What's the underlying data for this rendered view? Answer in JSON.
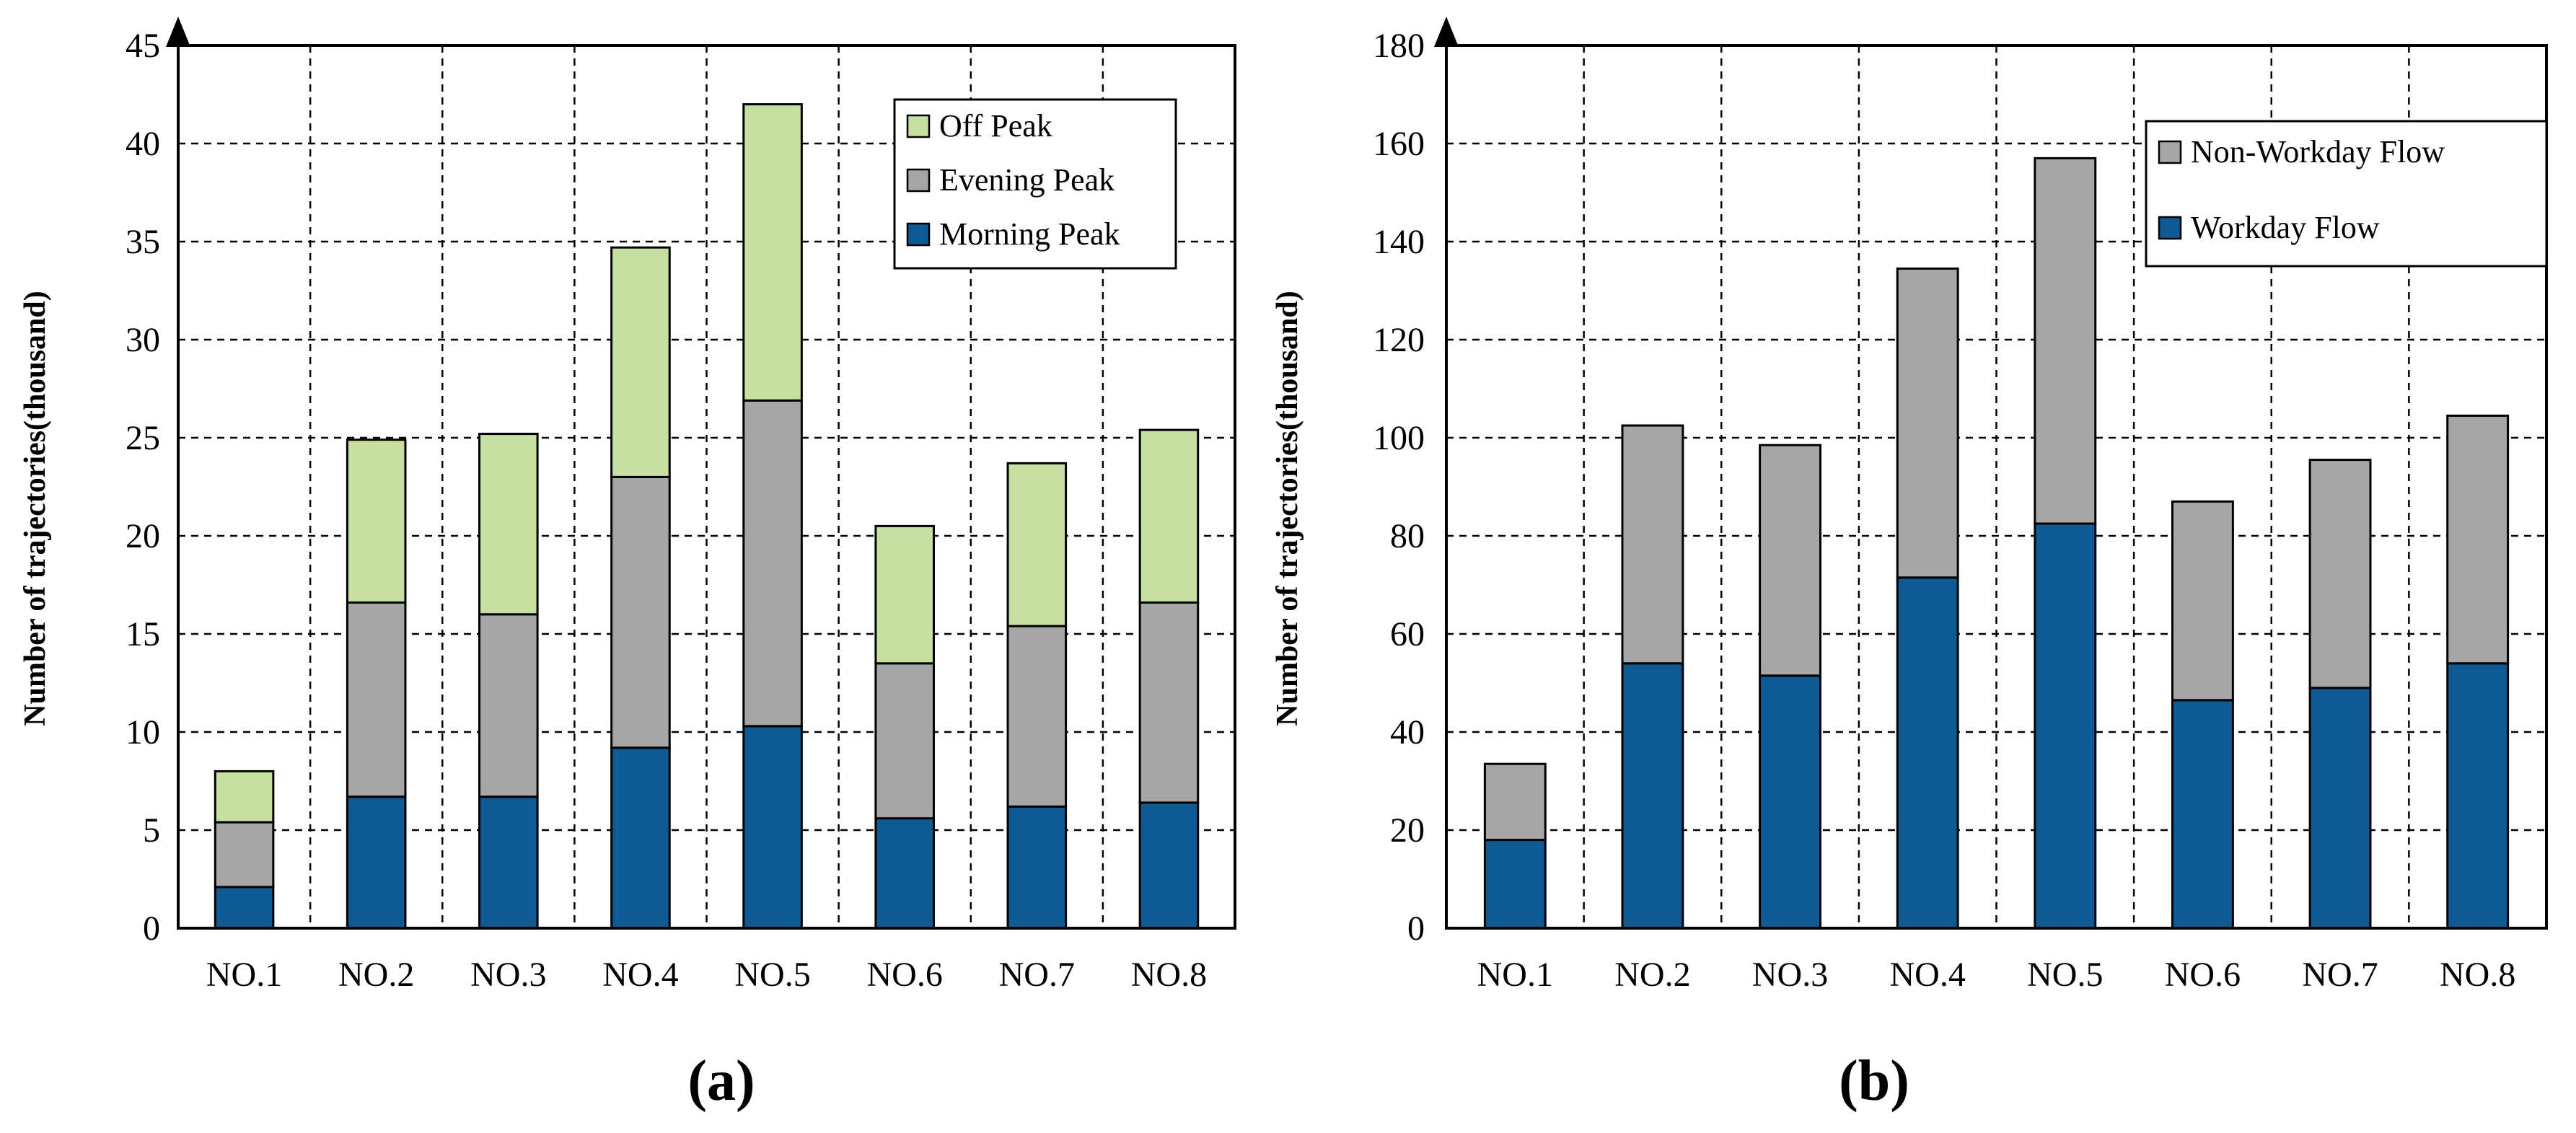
{
  "figure": {
    "panel_labels": [
      "(a)",
      "(b)"
    ]
  },
  "colors": {
    "morning_peak": "#0d5a94",
    "evening_peak": "#a6a6a6",
    "off_peak": "#c5e0a0",
    "workday_flow": "#0d5a94",
    "non_workday_flow": "#a6a6a6"
  },
  "chart_data": [
    {
      "type": "bar",
      "stacked": true,
      "title": "",
      "panel": "(a)",
      "xlabel": "",
      "ylabel": "Number of trajectories(thousand)",
      "ylim": [
        0,
        45
      ],
      "ytick_step": 5,
      "grid": true,
      "legend_position": "top-right",
      "categories": [
        "NO.1",
        "NO.2",
        "NO.3",
        "NO.4",
        "NO.5",
        "NO.6",
        "NO.7",
        "NO.8"
      ],
      "series": [
        {
          "name": "Morning Peak",
          "color": "#0d5a94",
          "values": [
            2.1,
            6.7,
            6.7,
            9.2,
            10.3,
            5.6,
            6.2,
            6.4
          ]
        },
        {
          "name": "Evening Peak",
          "color": "#a6a6a6",
          "values": [
            3.3,
            9.9,
            9.3,
            13.8,
            16.6,
            7.9,
            9.2,
            10.2
          ]
        },
        {
          "name": "Off Peak",
          "color": "#c5e0a0",
          "values": [
            2.6,
            8.3,
            9.2,
            11.7,
            15.1,
            7.0,
            8.3,
            8.8
          ]
        }
      ],
      "legend_order": [
        "Off Peak",
        "Evening Peak",
        "Morning Peak"
      ]
    },
    {
      "type": "bar",
      "stacked": true,
      "title": "",
      "panel": "(b)",
      "xlabel": "",
      "ylabel": "Number of trajectories(thousand)",
      "ylim": [
        0,
        180
      ],
      "ytick_step": 20,
      "grid": true,
      "legend_position": "top-right",
      "categories": [
        "NO.1",
        "NO.2",
        "NO.3",
        "NO.4",
        "NO.5",
        "NO.6",
        "NO.7",
        "NO.8"
      ],
      "series": [
        {
          "name": "Workday Flow",
          "color": "#0d5a94",
          "values": [
            18,
            54,
            51.5,
            71.5,
            82.5,
            46.5,
            49,
            54
          ]
        },
        {
          "name": "Non-Workday Flow",
          "color": "#a6a6a6",
          "values": [
            15.5,
            48.5,
            47,
            63,
            74.5,
            40.5,
            46.5,
            50.5
          ]
        }
      ],
      "legend_order": [
        "Non-Workday Flow",
        "Workday Flow"
      ]
    }
  ]
}
